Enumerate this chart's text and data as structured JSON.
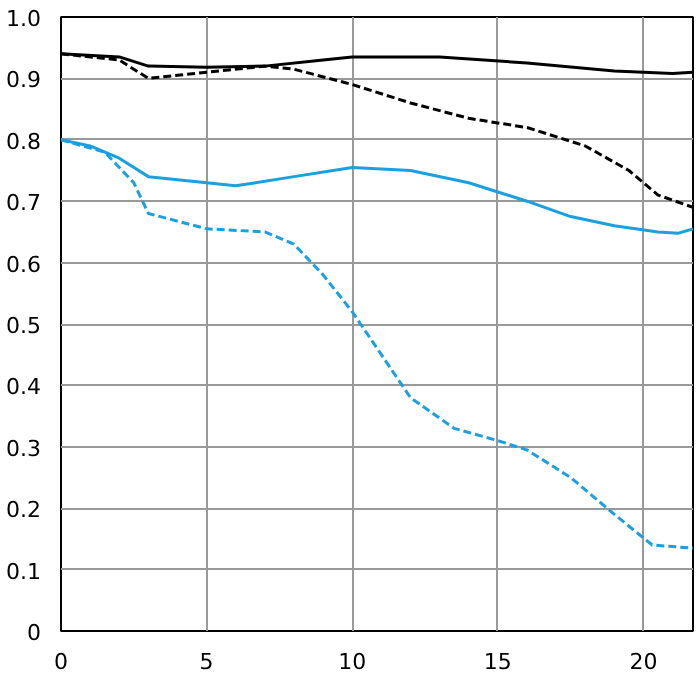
{
  "chart_data": {
    "type": "line",
    "xlim": [
      0,
      21.7
    ],
    "ylim": [
      0,
      1.0
    ],
    "xticks": [
      0,
      5,
      10,
      15,
      20
    ],
    "yticks": [
      0,
      0.1,
      0.2,
      0.3,
      0.4,
      0.5,
      0.6,
      0.7,
      0.8,
      0.9,
      {
        "value": 1.0,
        "label": "1.0"
      }
    ],
    "grid": true,
    "marker": "none",
    "series": [
      {
        "color": "#000000",
        "line_style": "solid",
        "x": [
          0,
          2,
          3,
          5,
          7,
          9,
          10,
          13,
          16,
          19,
          21,
          21.7
        ],
        "values": [
          0.94,
          0.935,
          0.92,
          0.918,
          0.92,
          0.93,
          0.935,
          0.935,
          0.925,
          0.912,
          0.908,
          0.91
        ]
      },
      {
        "color": "#000000",
        "line_style": "dashed",
        "x": [
          0,
          2,
          3,
          5,
          7,
          8,
          10,
          12,
          14,
          16,
          18,
          19.5,
          20.5,
          21.7
        ],
        "values": [
          0.94,
          0.93,
          0.9,
          0.91,
          0.92,
          0.915,
          0.89,
          0.86,
          0.835,
          0.82,
          0.79,
          0.75,
          0.71,
          0.69
        ]
      },
      {
        "color": "#1a9fe0",
        "line_style": "solid",
        "x": [
          0,
          1,
          2,
          3,
          5,
          6,
          8,
          10,
          12,
          14,
          16,
          17.5,
          19,
          20.5,
          21.2,
          21.7
        ],
        "values": [
          0.8,
          0.79,
          0.77,
          0.74,
          0.73,
          0.725,
          0.74,
          0.755,
          0.75,
          0.73,
          0.7,
          0.675,
          0.66,
          0.65,
          0.648,
          0.655
        ]
      },
      {
        "color": "#1a9fe0",
        "line_style": "dashed",
        "x": [
          0,
          1.5,
          2.5,
          3,
          5,
          7,
          8,
          9,
          10,
          11,
          12,
          13.5,
          15,
          16,
          17.5,
          19,
          20.3,
          21.7
        ],
        "values": [
          0.8,
          0.78,
          0.73,
          0.68,
          0.655,
          0.65,
          0.63,
          0.58,
          0.52,
          0.45,
          0.38,
          0.33,
          0.31,
          0.295,
          0.25,
          0.19,
          0.14,
          0.135
        ]
      }
    ]
  }
}
